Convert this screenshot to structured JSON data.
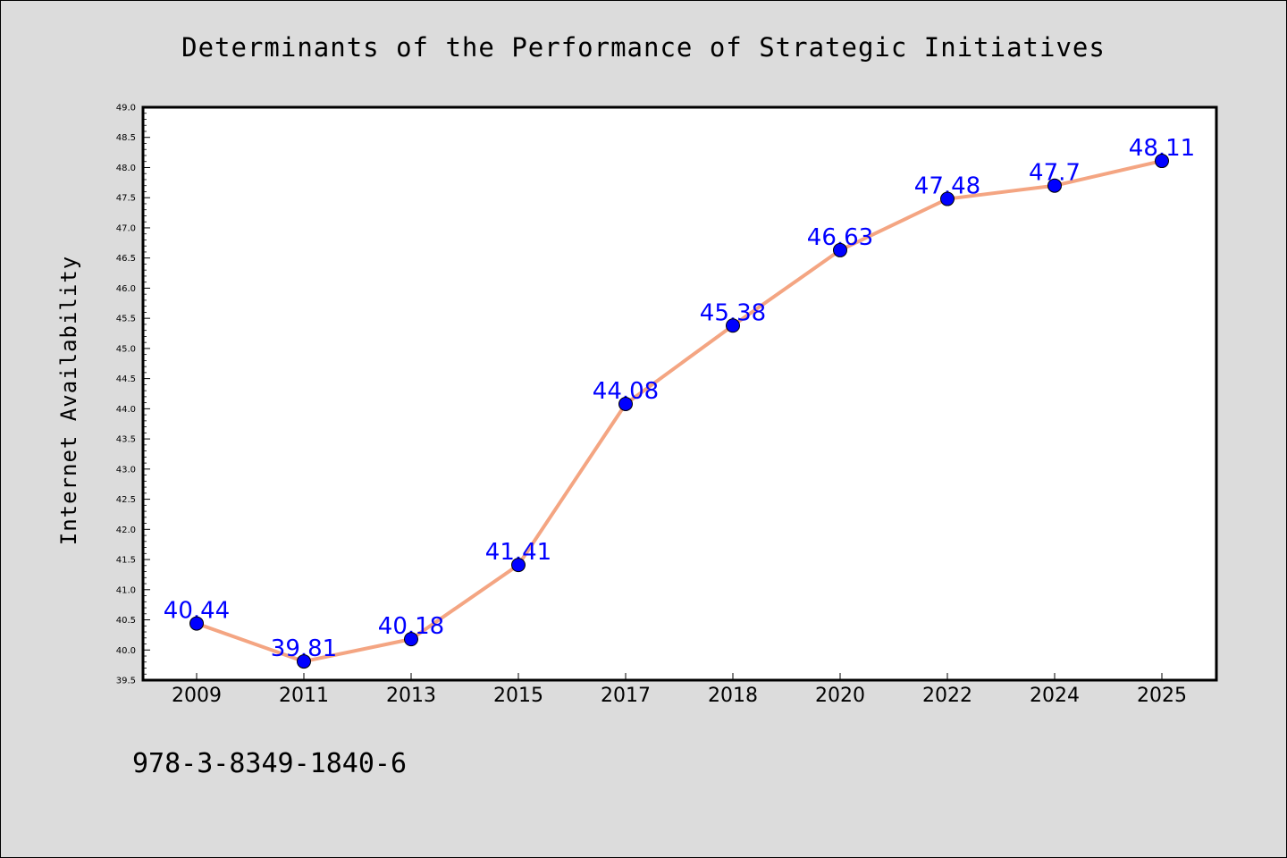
{
  "chart_data": {
    "type": "line",
    "title": "Determinants of the Performance of Strategic Initiatives",
    "xlabel": "",
    "ylabel": "Internet Availability",
    "categories": [
      "2009",
      "2011",
      "2013",
      "2015",
      "2017",
      "2018",
      "2020",
      "2022",
      "2024",
      "2025"
    ],
    "series": [
      {
        "values": [
          40.44,
          39.81,
          40.18,
          41.41,
          44.08,
          45.38,
          46.63,
          47.48,
          47.7,
          48.11
        ],
        "data_labels": [
          "40.44",
          "39.81",
          "40.18",
          "41.41",
          "44.08",
          "45.38",
          "46.63",
          "47.48",
          "47.7",
          "48.11"
        ],
        "line_color": "#f4a582",
        "marker_color": "#0000ff",
        "label_color": "#0000ff"
      }
    ],
    "ylim": [
      39.5,
      49.0
    ],
    "yticks": [
      "39.5",
      "40.0",
      "40.5",
      "41.0",
      "41.5",
      "42.0",
      "42.5",
      "43.0",
      "43.5",
      "44.0",
      "44.5",
      "45.0",
      "45.5",
      "46.0",
      "46.5",
      "47.0",
      "47.5",
      "48.0",
      "48.5",
      "49.0"
    ],
    "grid": false,
    "legend": "none"
  },
  "footer": {
    "isbn": "978-3-8349-1840-6"
  }
}
